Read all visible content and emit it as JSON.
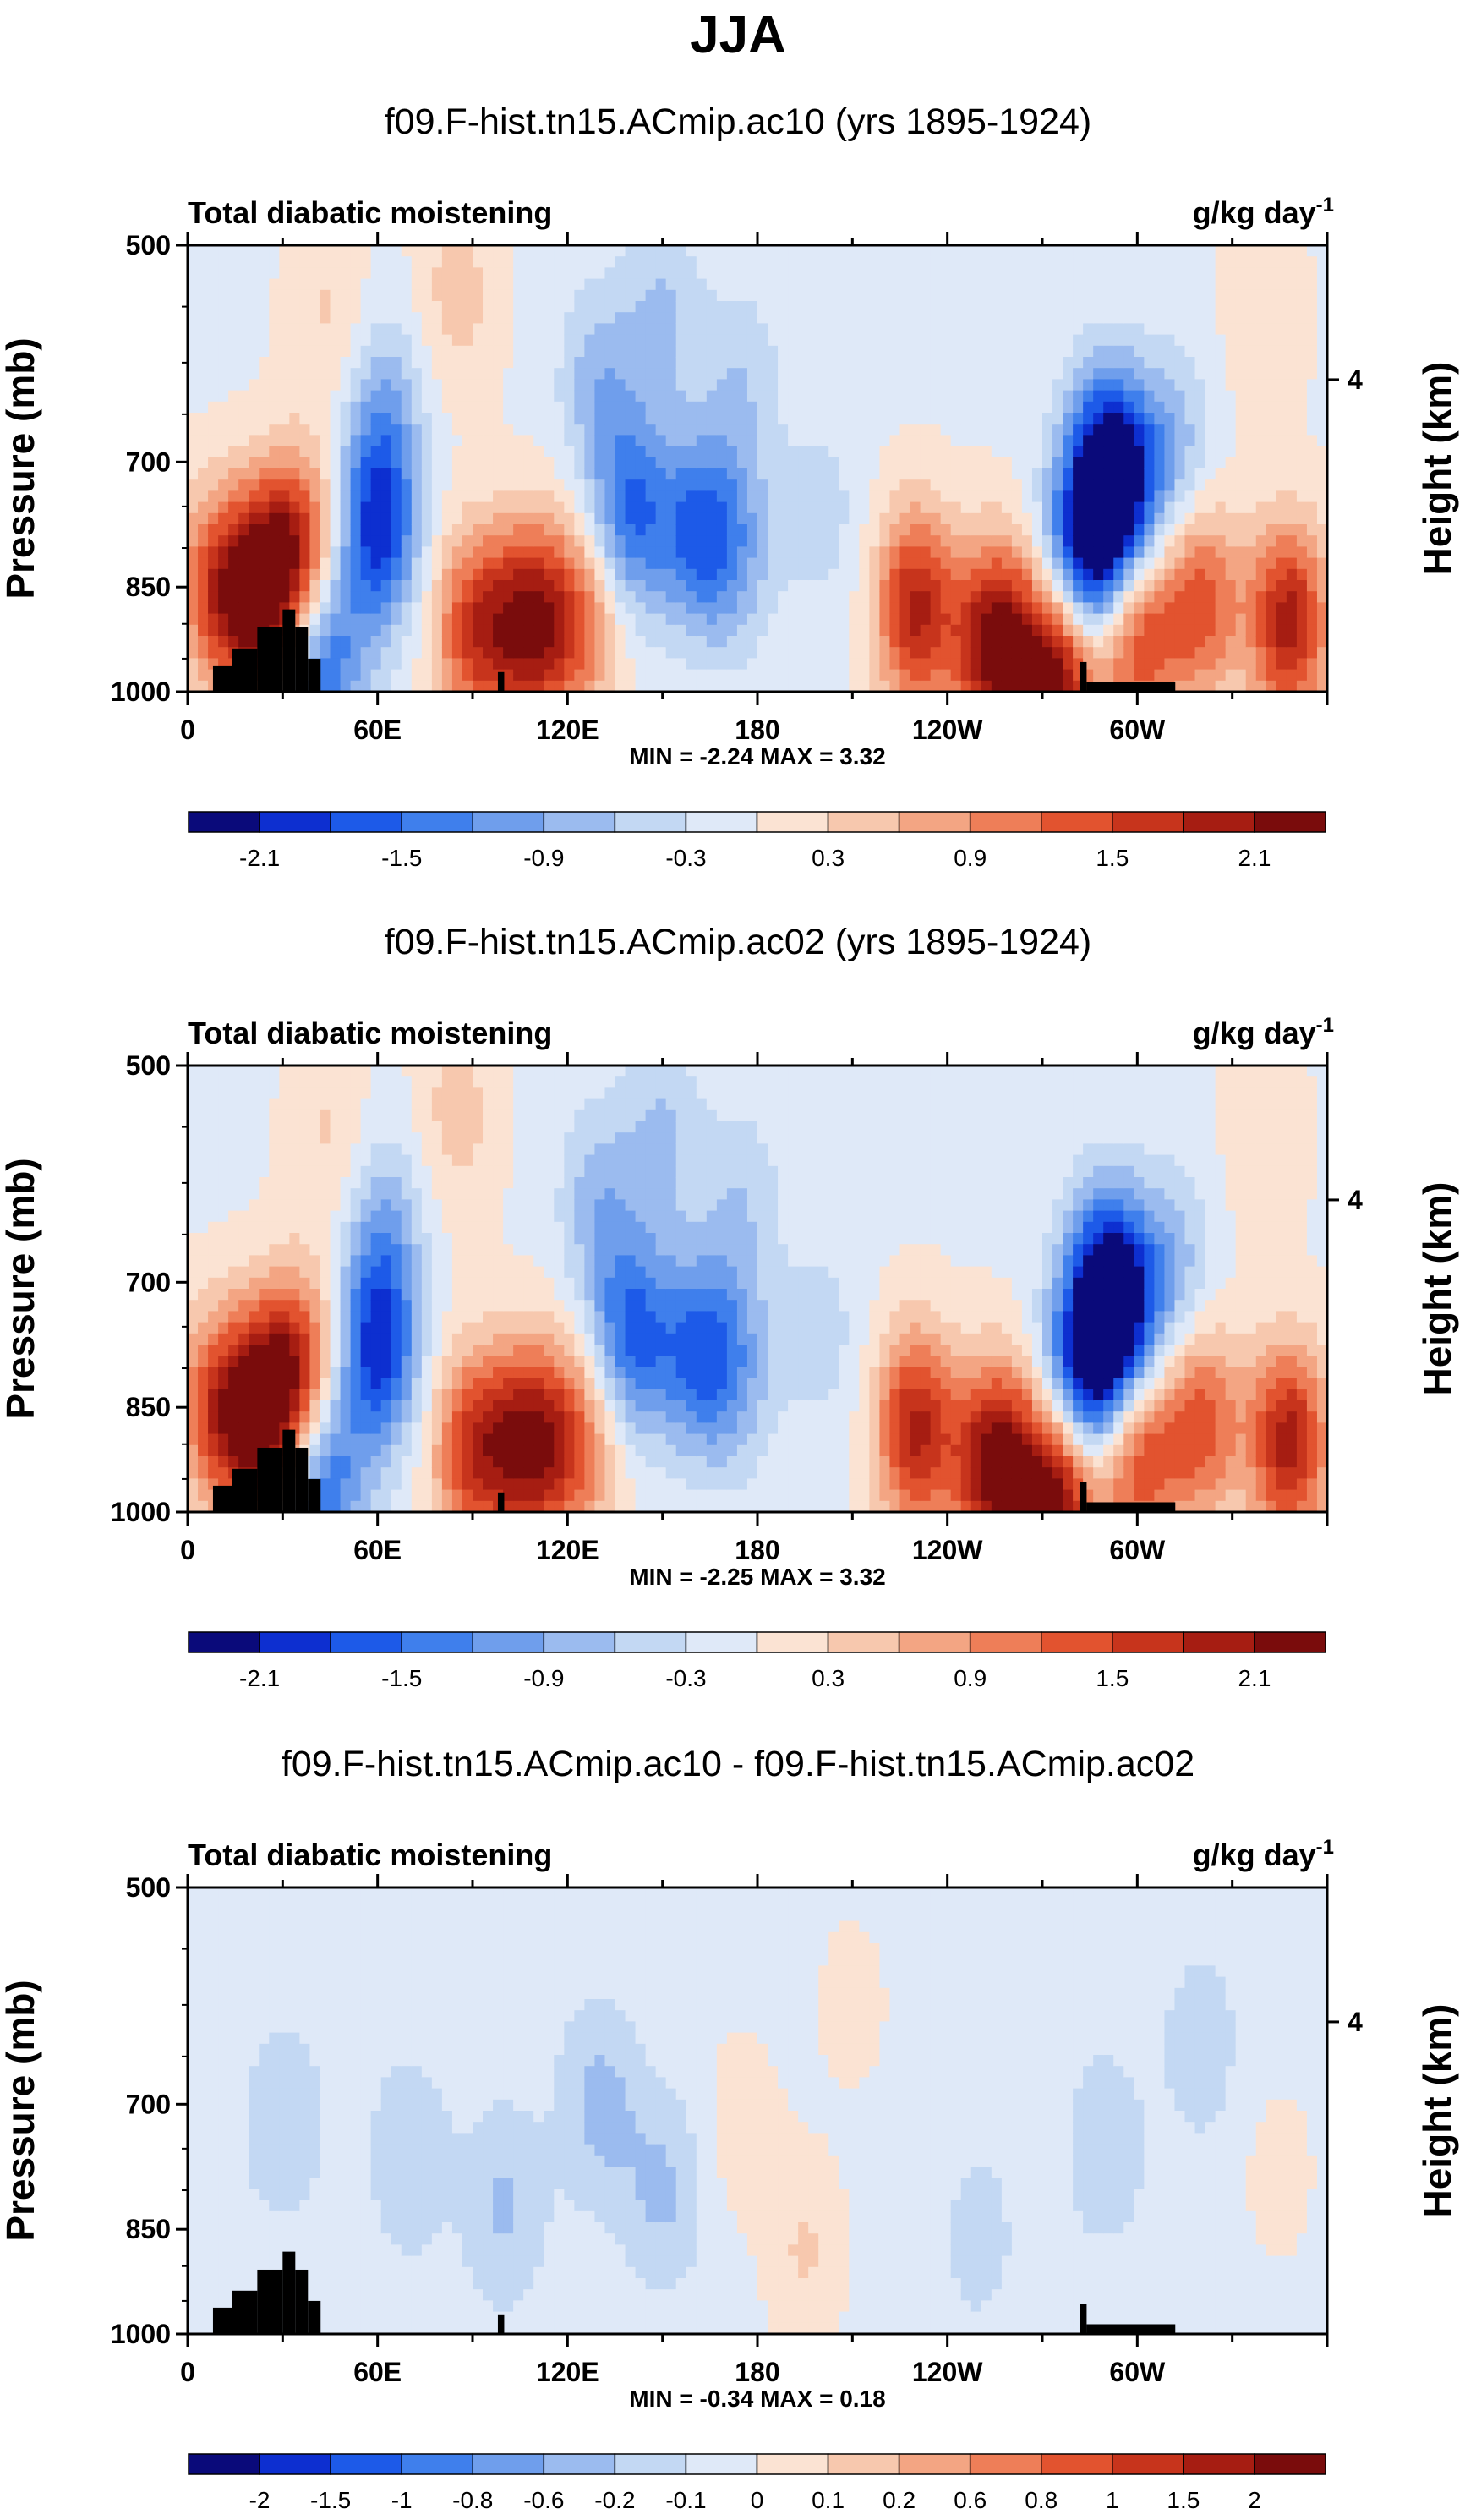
{
  "figure": {
    "title": "JJA"
  },
  "chart_data": [
    {
      "type": "heatmap",
      "title": "f09.F-hist.tn15.ACmip.ac10 (yrs 1895-1924)",
      "left_label": "Total diabatic moistening",
      "units_main": "g/kg day",
      "units_exp": "-1",
      "ylabel": "Pressure (mb)",
      "ylabel_right": "Height (km)",
      "yticks": [
        "500",
        "700",
        "850",
        "1000"
      ],
      "right_ticks": [
        "4"
      ],
      "xticks": [
        "0",
        "60E",
        "120E",
        "180",
        "120W",
        "60W"
      ],
      "stats": "MIN = -2.24  MAX =  3.32",
      "cbar_labels": [
        "-2.1",
        "-1.5",
        "-0.9",
        "-0.3",
        "0.3",
        "0.9",
        "1.5",
        "2.1"
      ],
      "cbar_colors": [
        "#0a0a7a",
        "#0d2fd0",
        "#1d5ae8",
        "#3f7fec",
        "#6f9eec",
        "#9bbbef",
        "#c3d8f3",
        "#dfe9f8",
        "#fbe3d3",
        "#f7c8ae",
        "#f3a583",
        "#ee7e58",
        "#e2532f",
        "#c7341c",
        "#a61d12",
        "#7a0c0c"
      ],
      "blobs": [
        {
          "lon": 8,
          "lev": 850,
          "value": 1.2
        },
        {
          "lon": 20,
          "lev": 870,
          "value": 1.5
        },
        {
          "lon": 28,
          "lev": 830,
          "value": 1.3
        },
        {
          "lon": 36,
          "lev": 800,
          "value": 1.2
        },
        {
          "lon": 43,
          "lev": 950,
          "value": -1.5
        },
        {
          "lon": 60,
          "lev": 780,
          "value": -1.8
        },
        {
          "lon": 62,
          "lev": 650,
          "value": -0.8
        },
        {
          "lon": 90,
          "lev": 910,
          "value": 1.5
        },
        {
          "lon": 105,
          "lev": 900,
          "value": 1.2
        },
        {
          "lon": 112,
          "lev": 900,
          "value": 1.1
        },
        {
          "lon": 125,
          "lev": 900,
          "value": 1.0
        },
        {
          "lon": 130,
          "lev": 620,
          "value": -0.7
        },
        {
          "lon": 140,
          "lev": 760,
          "value": -1.4
        },
        {
          "lon": 160,
          "lev": 780,
          "value": -1.2
        },
        {
          "lon": 172,
          "lev": 800,
          "value": -0.9
        },
        {
          "lon": 150,
          "lev": 560,
          "value": -0.6
        },
        {
          "lon": 175,
          "lev": 620,
          "value": -0.5
        },
        {
          "lon": 200,
          "lev": 760,
          "value": -0.4
        },
        {
          "lon": 45,
          "lev": 560,
          "value": 0.4
        },
        {
          "lon": 85,
          "lev": 540,
          "value": 0.5
        },
        {
          "lon": 230,
          "lev": 880,
          "value": 1.9
        },
        {
          "lon": 255,
          "lev": 930,
          "value": 2.4
        },
        {
          "lon": 275,
          "lev": 960,
          "value": 2.6
        },
        {
          "lon": 282,
          "lev": 830,
          "value": -2.0
        },
        {
          "lon": 290,
          "lev": 700,
          "value": -1.8
        },
        {
          "lon": 294,
          "lev": 760,
          "value": -1.5
        },
        {
          "lon": 310,
          "lev": 690,
          "value": -0.8
        },
        {
          "lon": 300,
          "lev": 920,
          "value": 1.6
        },
        {
          "lon": 320,
          "lev": 870,
          "value": 1.4
        },
        {
          "lon": 348,
          "lev": 900,
          "value": 2.0
        },
        {
          "lon": 340,
          "lev": 560,
          "value": 0.3
        }
      ]
    },
    {
      "type": "heatmap",
      "title": "f09.F-hist.tn15.ACmip.ac02 (yrs 1895-1924)",
      "left_label": "Total diabatic moistening",
      "units_main": "g/kg day",
      "units_exp": "-1",
      "ylabel": "Pressure (mb)",
      "ylabel_right": "Height (km)",
      "yticks": [
        "500",
        "700",
        "850",
        "1000"
      ],
      "right_ticks": [
        "4"
      ],
      "xticks": [
        "0",
        "60E",
        "120E",
        "180",
        "120W",
        "60W"
      ],
      "stats": "MIN = -2.25  MAX =  3.32",
      "cbar_labels": [
        "-2.1",
        "-1.5",
        "-0.9",
        "-0.3",
        "0.3",
        "0.9",
        "1.5",
        "2.1"
      ],
      "cbar_colors": [
        "#0a0a7a",
        "#0d2fd0",
        "#1d5ae8",
        "#3f7fec",
        "#6f9eec",
        "#9bbbef",
        "#c3d8f3",
        "#dfe9f8",
        "#fbe3d3",
        "#f7c8ae",
        "#f3a583",
        "#ee7e58",
        "#e2532f",
        "#c7341c",
        "#a61d12",
        "#7a0c0c"
      ],
      "blobs": [
        {
          "lon": 8,
          "lev": 850,
          "value": 1.2
        },
        {
          "lon": 20,
          "lev": 870,
          "value": 1.5
        },
        {
          "lon": 28,
          "lev": 830,
          "value": 1.3
        },
        {
          "lon": 36,
          "lev": 800,
          "value": 1.2
        },
        {
          "lon": 43,
          "lev": 950,
          "value": -1.5
        },
        {
          "lon": 60,
          "lev": 780,
          "value": -1.8
        },
        {
          "lon": 62,
          "lev": 650,
          "value": -0.8
        },
        {
          "lon": 90,
          "lev": 910,
          "value": 1.6
        },
        {
          "lon": 105,
          "lev": 900,
          "value": 1.2
        },
        {
          "lon": 112,
          "lev": 900,
          "value": 1.1
        },
        {
          "lon": 125,
          "lev": 900,
          "value": 1.0
        },
        {
          "lon": 130,
          "lev": 620,
          "value": -0.7
        },
        {
          "lon": 140,
          "lev": 760,
          "value": -1.5
        },
        {
          "lon": 160,
          "lev": 780,
          "value": -1.2
        },
        {
          "lon": 172,
          "lev": 800,
          "value": -0.9
        },
        {
          "lon": 150,
          "lev": 560,
          "value": -0.6
        },
        {
          "lon": 175,
          "lev": 620,
          "value": -0.5
        },
        {
          "lon": 200,
          "lev": 760,
          "value": -0.4
        },
        {
          "lon": 45,
          "lev": 560,
          "value": 0.4
        },
        {
          "lon": 85,
          "lev": 540,
          "value": 0.5
        },
        {
          "lon": 230,
          "lev": 880,
          "value": 1.9
        },
        {
          "lon": 255,
          "lev": 930,
          "value": 2.4
        },
        {
          "lon": 275,
          "lev": 960,
          "value": 2.6
        },
        {
          "lon": 282,
          "lev": 830,
          "value": -2.0
        },
        {
          "lon": 290,
          "lev": 700,
          "value": -1.8
        },
        {
          "lon": 294,
          "lev": 760,
          "value": -1.5
        },
        {
          "lon": 310,
          "lev": 690,
          "value": -0.8
        },
        {
          "lon": 300,
          "lev": 920,
          "value": 1.6
        },
        {
          "lon": 320,
          "lev": 870,
          "value": 1.4
        },
        {
          "lon": 348,
          "lev": 900,
          "value": 2.0
        },
        {
          "lon": 340,
          "lev": 560,
          "value": 0.3
        }
      ]
    },
    {
      "type": "heatmap",
      "title": "f09.F-hist.tn15.ACmip.ac10 - f09.F-hist.tn15.ACmip.ac02",
      "left_label": "Total diabatic moistening",
      "units_main": "g/kg day",
      "units_exp": "-1",
      "ylabel": "Pressure (mb)",
      "ylabel_right": "Height (km)",
      "yticks": [
        "500",
        "700",
        "850",
        "1000"
      ],
      "right_ticks": [
        "4"
      ],
      "xticks": [
        "0",
        "60E",
        "120E",
        "180",
        "120W",
        "60W"
      ],
      "stats": "MIN = -0.34  MAX =  0.18",
      "cbar_labels": [
        "-2",
        "-1.5",
        "-1",
        "-0.8",
        "-0.6",
        "-0.2",
        "-0.1",
        "0",
        "0.1",
        "0.2",
        "0.6",
        "0.8",
        "1",
        "1.5",
        "2"
      ],
      "cbar_colors": [
        "#0a0a7a",
        "#0d2fd0",
        "#1d5ae8",
        "#3f7fec",
        "#6f9eec",
        "#9bbbef",
        "#c3d8f3",
        "#dfe9f8",
        "#fbe3d3",
        "#f7c8ae",
        "#f3a583",
        "#ee7e58",
        "#e2532f",
        "#c7341c",
        "#a61d12",
        "#7a0c0c"
      ],
      "blobs": [
        {
          "lon": 30,
          "lev": 720,
          "value": -0.15
        },
        {
          "lon": 70,
          "lev": 760,
          "value": -0.15
        },
        {
          "lon": 100,
          "lev": 820,
          "value": -0.18
        },
        {
          "lon": 130,
          "lev": 700,
          "value": -0.2
        },
        {
          "lon": 150,
          "lev": 800,
          "value": -0.18
        },
        {
          "lon": 175,
          "lev": 720,
          "value": 0.1
        },
        {
          "lon": 195,
          "lev": 880,
          "value": 0.15
        },
        {
          "lon": 210,
          "lev": 600,
          "value": 0.08
        },
        {
          "lon": 250,
          "lev": 860,
          "value": -0.1
        },
        {
          "lon": 290,
          "lev": 750,
          "value": -0.14
        },
        {
          "lon": 320,
          "lev": 640,
          "value": -0.12
        },
        {
          "lon": 345,
          "lev": 780,
          "value": 0.08
        }
      ]
    }
  ]
}
